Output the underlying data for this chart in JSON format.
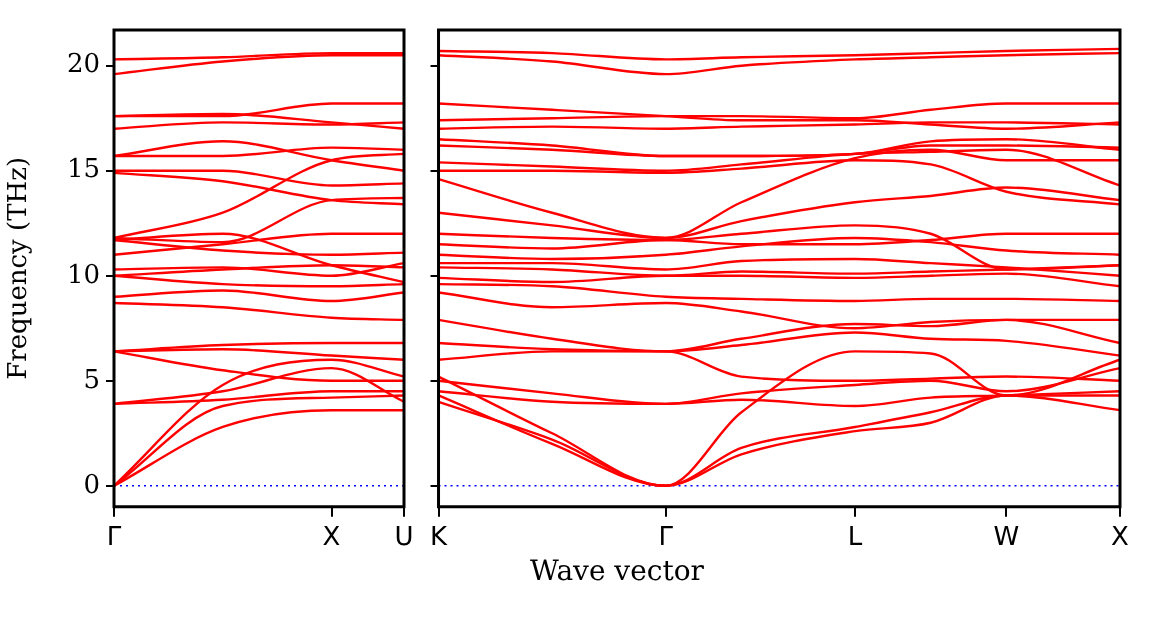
{
  "chart_data": [
    {
      "type": "line",
      "ylabel": "Frequency (THz)",
      "categories": [
        "Γ",
        null,
        null,
        null,
        null,
        null,
        "X",
        null,
        "U"
      ],
      "ylim": [
        -1,
        21.7
      ],
      "yticks": [
        0,
        5,
        10,
        15,
        20
      ],
      "grid": false,
      "legend": false,
      "marker": "none",
      "ref_lines": [
        {
          "axis": "y",
          "value": 0,
          "color": "#0000ff",
          "line_style": "dotted"
        }
      ],
      "series": [
        {
          "color": "#ff0000",
          "values": [
            0,
            null,
            null,
            2.8,
            null,
            null,
            3.6,
            null,
            3.6
          ]
        },
        {
          "color": "#ff0000",
          "values": [
            0,
            null,
            null,
            3.8,
            null,
            null,
            4.2,
            null,
            4.3
          ]
        },
        {
          "color": "#ff0000",
          "values": [
            0,
            null,
            null,
            4.8,
            null,
            null,
            6.0,
            null,
            5.2
          ]
        },
        {
          "color": "#ff0000",
          "values": [
            3.9,
            null,
            null,
            4.1,
            null,
            null,
            4.5,
            null,
            4.5
          ]
        },
        {
          "color": "#ff0000",
          "values": [
            3.9,
            null,
            null,
            4.5,
            null,
            null,
            5.6,
            null,
            4.0
          ]
        },
        {
          "color": "#ff0000",
          "values": [
            6.4,
            null,
            null,
            5.5,
            null,
            null,
            5.0,
            null,
            5.0
          ]
        },
        {
          "color": "#ff0000",
          "values": [
            6.4,
            null,
            null,
            6.5,
            null,
            null,
            6.2,
            null,
            6.0
          ]
        },
        {
          "color": "#ff0000",
          "values": [
            6.4,
            null,
            null,
            6.7,
            null,
            null,
            6.8,
            null,
            6.8
          ]
        },
        {
          "color": "#ff0000",
          "values": [
            8.7,
            null,
            null,
            8.5,
            null,
            null,
            8.0,
            null,
            7.9
          ]
        },
        {
          "color": "#ff0000",
          "values": [
            9.0,
            null,
            null,
            9.3,
            null,
            null,
            8.8,
            null,
            9.2
          ]
        },
        {
          "color": "#ff0000",
          "values": [
            10.0,
            null,
            null,
            9.6,
            null,
            null,
            9.5,
            null,
            9.6
          ]
        },
        {
          "color": "#ff0000",
          "values": [
            10.0,
            null,
            null,
            10.3,
            null,
            null,
            10.5,
            null,
            10.4
          ]
        },
        {
          "color": "#ff0000",
          "values": [
            10.3,
            null,
            null,
            10.4,
            null,
            null,
            10.0,
            null,
            10.6
          ]
        },
        {
          "color": "#ff0000",
          "values": [
            11.0,
            null,
            null,
            11.5,
            null,
            null,
            12.0,
            null,
            12.0
          ]
        },
        {
          "color": "#ff0000",
          "values": [
            11.7,
            null,
            null,
            11.2,
            null,
            null,
            11.0,
            null,
            11.1
          ]
        },
        {
          "color": "#ff0000",
          "values": [
            11.7,
            null,
            null,
            12.0,
            null,
            null,
            10.5,
            null,
            9.7
          ]
        },
        {
          "color": "#ff0000",
          "values": [
            11.8,
            null,
            null,
            11.6,
            null,
            null,
            13.6,
            null,
            13.7
          ]
        },
        {
          "color": "#ff0000",
          "values": [
            11.8,
            null,
            null,
            13.0,
            null,
            null,
            15.5,
            null,
            15.8
          ]
        },
        {
          "color": "#ff0000",
          "values": [
            14.9,
            null,
            null,
            14.5,
            null,
            null,
            13.6,
            null,
            13.4
          ]
        },
        {
          "color": "#ff0000",
          "values": [
            15.0,
            null,
            null,
            15.0,
            null,
            null,
            14.3,
            null,
            14.4
          ]
        },
        {
          "color": "#ff0000",
          "values": [
            15.7,
            null,
            null,
            15.7,
            null,
            null,
            16.1,
            null,
            16.0
          ]
        },
        {
          "color": "#ff0000",
          "values": [
            15.7,
            null,
            null,
            16.4,
            null,
            null,
            15.5,
            null,
            15.0
          ]
        },
        {
          "color": "#ff0000",
          "values": [
            17.0,
            null,
            null,
            17.3,
            null,
            null,
            17.2,
            null,
            17.3
          ]
        },
        {
          "color": "#ff0000",
          "values": [
            17.6,
            null,
            null,
            17.6,
            null,
            null,
            18.2,
            null,
            18.2
          ]
        },
        {
          "color": "#ff0000",
          "values": [
            17.6,
            null,
            null,
            17.7,
            null,
            null,
            17.3,
            null,
            17.0
          ]
        },
        {
          "color": "#ff0000",
          "values": [
            19.6,
            null,
            null,
            20.2,
            null,
            null,
            20.5,
            null,
            20.5
          ]
        },
        {
          "color": "#ff0000",
          "values": [
            20.3,
            null,
            null,
            20.4,
            null,
            null,
            20.6,
            null,
            20.6
          ]
        }
      ]
    },
    {
      "type": "line",
      "xlabel": "Wave vector",
      "categories": [
        "K",
        null,
        null,
        null,
        null,
        null,
        "Γ",
        null,
        null,
        null,
        null,
        "L",
        null,
        null,
        null,
        "W",
        null,
        null,
        "X"
      ],
      "ylim": [
        -1,
        21.7
      ],
      "yticks": [
        0,
        5,
        10,
        15,
        20
      ],
      "tick_labels": "x",
      "grid": false,
      "legend": false,
      "marker": "none",
      "ref_lines": [
        {
          "axis": "y",
          "value": 0,
          "color": "#0000ff",
          "line_style": "dotted"
        }
      ],
      "series": [
        {
          "color": "#ff0000",
          "values": [
            4.3,
            null,
            null,
            2.0,
            null,
            null,
            0,
            null,
            1.5,
            null,
            null,
            2.6,
            null,
            3.0,
            null,
            4.3,
            null,
            null,
            3.6
          ]
        },
        {
          "color": "#ff0000",
          "values": [
            5.2,
            null,
            null,
            2.5,
            null,
            null,
            0,
            null,
            1.8,
            null,
            null,
            2.8,
            null,
            3.5,
            null,
            4.3,
            null,
            null,
            4.3
          ]
        },
        {
          "color": "#ff0000",
          "values": [
            4.0,
            null,
            null,
            2.2,
            null,
            null,
            0,
            null,
            3.5,
            null,
            null,
            6.4,
            null,
            6.3,
            null,
            4.3,
            null,
            null,
            6.0
          ]
        },
        {
          "color": "#ff0000",
          "values": [
            4.5,
            null,
            null,
            4.0,
            null,
            null,
            3.9,
            null,
            4.1,
            null,
            null,
            3.8,
            null,
            4.2,
            null,
            4.3,
            null,
            null,
            4.5
          ]
        },
        {
          "color": "#ff0000",
          "values": [
            5.0,
            null,
            null,
            4.4,
            null,
            null,
            3.9,
            null,
            4.4,
            null,
            null,
            4.8,
            null,
            5.0,
            null,
            4.5,
            null,
            null,
            5.6
          ]
        },
        {
          "color": "#ff0000",
          "values": [
            6.0,
            null,
            null,
            6.4,
            null,
            null,
            6.4,
            null,
            5.2,
            null,
            null,
            5.0,
            null,
            5.1,
            null,
            5.2,
            null,
            null,
            5.0
          ]
        },
        {
          "color": "#ff0000",
          "values": [
            6.8,
            null,
            null,
            6.5,
            null,
            null,
            6.4,
            null,
            6.7,
            null,
            null,
            7.3,
            null,
            7.0,
            null,
            6.9,
            null,
            null,
            6.2
          ]
        },
        {
          "color": "#ff0000",
          "values": [
            7.9,
            null,
            null,
            7.0,
            null,
            null,
            6.4,
            null,
            7.0,
            null,
            null,
            7.7,
            null,
            7.6,
            null,
            7.9,
            null,
            null,
            6.8
          ]
        },
        {
          "color": "#ff0000",
          "values": [
            9.2,
            null,
            null,
            8.5,
            null,
            null,
            8.7,
            null,
            8.3,
            null,
            null,
            7.5,
            null,
            7.8,
            null,
            7.9,
            null,
            null,
            7.9
          ]
        },
        {
          "color": "#ff0000",
          "values": [
            9.6,
            null,
            null,
            9.5,
            null,
            null,
            9.0,
            null,
            8.9,
            null,
            null,
            8.8,
            null,
            8.9,
            null,
            8.9,
            null,
            null,
            8.8
          ]
        },
        {
          "color": "#ff0000",
          "values": [
            9.9,
            null,
            null,
            9.7,
            null,
            null,
            10.0,
            null,
            10.0,
            null,
            null,
            9.9,
            null,
            10.0,
            null,
            10.1,
            null,
            null,
            9.5
          ]
        },
        {
          "color": "#ff0000",
          "values": [
            10.4,
            null,
            null,
            10.3,
            null,
            null,
            10.0,
            null,
            10.2,
            null,
            null,
            10.1,
            null,
            10.2,
            null,
            10.3,
            null,
            null,
            10.5
          ]
        },
        {
          "color": "#ff0000",
          "values": [
            10.6,
            null,
            null,
            10.6,
            null,
            null,
            10.3,
            null,
            10.7,
            null,
            null,
            10.8,
            null,
            10.6,
            null,
            10.4,
            null,
            null,
            10.0
          ]
        },
        {
          "color": "#ff0000",
          "values": [
            11.0,
            null,
            null,
            10.8,
            null,
            null,
            11.0,
            null,
            11.4,
            null,
            null,
            11.8,
            null,
            11.6,
            null,
            11.2,
            null,
            null,
            11.0
          ]
        },
        {
          "color": "#ff0000",
          "values": [
            11.5,
            null,
            null,
            11.3,
            null,
            null,
            11.7,
            null,
            11.5,
            null,
            null,
            11.5,
            null,
            11.7,
            null,
            12.0,
            null,
            null,
            12.0
          ]
        },
        {
          "color": "#ff0000",
          "values": [
            12.0,
            null,
            null,
            11.8,
            null,
            null,
            11.7,
            null,
            12.0,
            null,
            null,
            12.4,
            null,
            12.0,
            null,
            10.3,
            null,
            null,
            10.5
          ]
        },
        {
          "color": "#ff0000",
          "values": [
            13.0,
            null,
            null,
            12.4,
            null,
            null,
            11.8,
            null,
            12.6,
            null,
            null,
            13.5,
            null,
            13.8,
            null,
            14.2,
            null,
            null,
            13.6
          ]
        },
        {
          "color": "#ff0000",
          "values": [
            14.6,
            null,
            null,
            13.0,
            null,
            null,
            11.8,
            null,
            13.5,
            null,
            null,
            15.6,
            null,
            16.0,
            null,
            15.5,
            null,
            null,
            15.5
          ]
        },
        {
          "color": "#ff0000",
          "values": [
            15.0,
            null,
            null,
            15.0,
            null,
            null,
            14.9,
            null,
            15.1,
            null,
            null,
            15.5,
            null,
            15.3,
            null,
            14.0,
            null,
            null,
            13.4
          ]
        },
        {
          "color": "#ff0000",
          "values": [
            15.4,
            null,
            null,
            15.2,
            null,
            null,
            15.0,
            null,
            15.3,
            null,
            null,
            15.8,
            null,
            15.9,
            null,
            16.0,
            null,
            null,
            14.3
          ]
        },
        {
          "color": "#ff0000",
          "values": [
            16.2,
            null,
            null,
            16.0,
            null,
            null,
            15.7,
            null,
            15.7,
            null,
            null,
            15.8,
            null,
            16.2,
            null,
            16.2,
            null,
            null,
            16.1
          ]
        },
        {
          "color": "#ff0000",
          "values": [
            16.5,
            null,
            null,
            16.2,
            null,
            null,
            15.7,
            null,
            15.7,
            null,
            null,
            15.8,
            null,
            16.4,
            null,
            16.5,
            null,
            null,
            16.0
          ]
        },
        {
          "color": "#ff0000",
          "values": [
            17.0,
            null,
            null,
            17.1,
            null,
            null,
            17.0,
            null,
            17.1,
            null,
            null,
            17.2,
            null,
            17.3,
            null,
            17.3,
            null,
            null,
            17.2
          ]
        },
        {
          "color": "#ff0000",
          "values": [
            17.4,
            null,
            null,
            17.5,
            null,
            null,
            17.6,
            null,
            17.6,
            null,
            null,
            17.5,
            null,
            17.9,
            null,
            18.2,
            null,
            null,
            18.2
          ]
        },
        {
          "color": "#ff0000",
          "values": [
            18.2,
            null,
            null,
            17.9,
            null,
            null,
            17.6,
            null,
            17.4,
            null,
            null,
            17.4,
            null,
            17.2,
            null,
            17.0,
            null,
            null,
            17.3
          ]
        },
        {
          "color": "#ff0000",
          "values": [
            20.5,
            null,
            null,
            20.2,
            null,
            null,
            19.6,
            null,
            20.0,
            null,
            null,
            20.3,
            null,
            20.4,
            null,
            20.5,
            null,
            null,
            20.6
          ]
        },
        {
          "color": "#ff0000",
          "values": [
            20.7,
            null,
            null,
            20.6,
            null,
            null,
            20.3,
            null,
            20.4,
            null,
            null,
            20.5,
            null,
            20.6,
            null,
            20.7,
            null,
            null,
            20.8
          ]
        }
      ]
    }
  ]
}
